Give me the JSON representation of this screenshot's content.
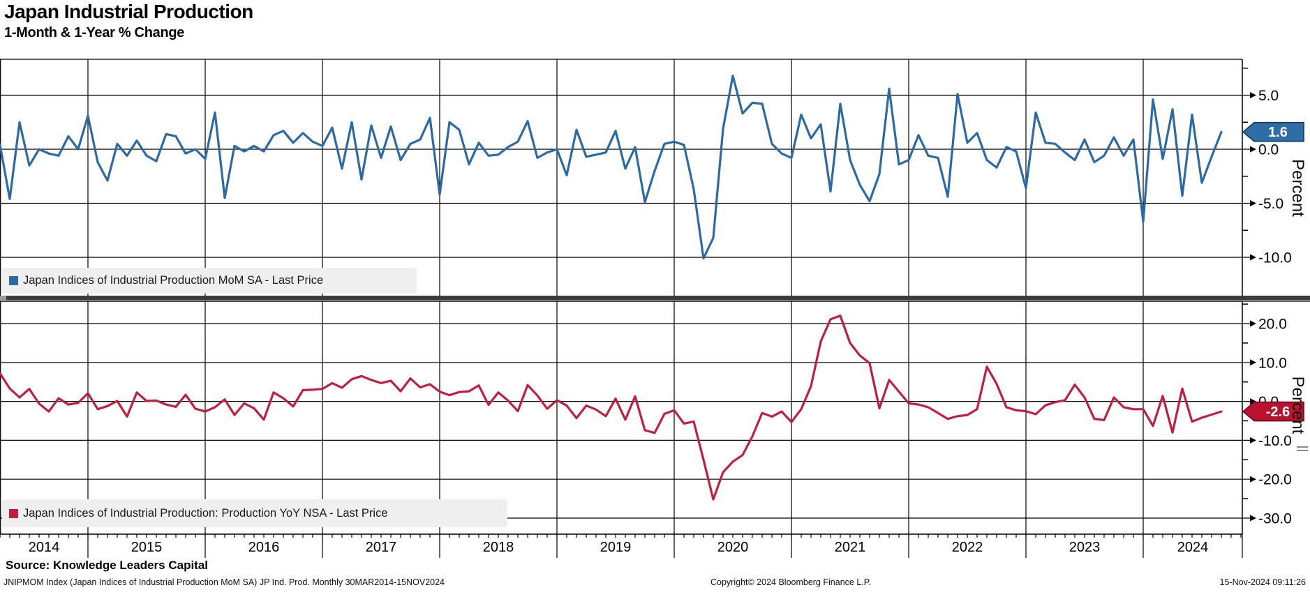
{
  "header": {
    "title": "Japan Industrial Production",
    "subtitle": "1-Month & 1-Year % Change"
  },
  "colors": {
    "mom_line": "#2b6aa5",
    "mom_badge_fill": "#2e6da6",
    "mom_badge_border": "#173a5e",
    "yoy_line": "#c01f3e",
    "yoy_badge_fill": "#b8122f",
    "yoy_badge_border": "#6e0a1d",
    "grid": "#000000",
    "legend_bg": "#efefef",
    "separator": "#3c3c3c"
  },
  "x_axis": {
    "year_labels": [
      "2014",
      "2015",
      "2016",
      "2017",
      "2018",
      "2019",
      "2020",
      "2021",
      "2022",
      "2023",
      "2024"
    ]
  },
  "chart_data": [
    {
      "type": "line",
      "panel": "top",
      "name": "Japan Indices of Industrial Production MoM SA",
      "legend": "Japan Indices of Industrial Production MoM SA - Last Price",
      "frequency": "monthly",
      "start": "2014-03",
      "end": "2024-09",
      "ylabel": "Percent",
      "last_price_label": "1.6",
      "y_axis": {
        "tick_values": [
          5,
          0,
          -5,
          -10
        ],
        "tick_labels": [
          "5.0",
          "0.0",
          "-5.0",
          "-10.0"
        ],
        "minor_tick_values": [
          7.5,
          2.5,
          -2.5,
          -7.5
        ],
        "range_approx": [
          -11.5,
          8.3
        ],
        "grid": true,
        "side": "right"
      },
      "values": [
        1.5,
        0.4,
        -4.6,
        2.5,
        -1.5,
        0.0,
        -0.4,
        -0.6,
        1.2,
        0.0,
        3.1,
        -1.2,
        -2.9,
        0.5,
        -0.6,
        0.8,
        -0.6,
        -1.1,
        1.4,
        1.2,
        -0.4,
        0.0,
        -0.9,
        3.4,
        -4.5,
        0.3,
        -0.2,
        0.3,
        -0.2,
        1.3,
        1.7,
        0.6,
        1.5,
        0.7,
        0.3,
        2.0,
        -1.8,
        2.5,
        -2.8,
        2.2,
        -0.8,
        2.1,
        -1.0,
        0.5,
        0.9,
        2.9,
        -4.2,
        2.5,
        1.8,
        -1.4,
        0.6,
        -0.6,
        -0.5,
        0.2,
        0.7,
        2.6,
        -0.8,
        -0.3,
        0.0,
        -2.4,
        1.8,
        -0.7,
        -0.5,
        -0.3,
        1.7,
        -1.8,
        0.2,
        -4.9,
        -2.0,
        0.5,
        0.7,
        0.4,
        -3.7,
        -10.1,
        -8.2,
        1.9,
        6.8,
        3.3,
        4.3,
        4.2,
        0.5,
        -0.4,
        -0.8,
        3.2,
        1.0,
        2.3,
        -3.9,
        4.2,
        -1.0,
        -3.3,
        -4.8,
        -2.3,
        5.6,
        -1.4,
        -1.0,
        1.3,
        -0.6,
        -0.8,
        -4.4,
        5.1,
        0.6,
        1.5,
        -1.0,
        -1.7,
        0.2,
        -0.2,
        -3.6,
        3.4,
        0.6,
        0.5,
        -0.3,
        -1.0,
        0.9,
        -1.2,
        -0.6,
        1.1,
        -0.6,
        0.9,
        -6.7,
        4.6,
        -0.9,
        3.7,
        -4.3,
        3.2,
        -3.1,
        -0.7,
        1.6
      ]
    },
    {
      "type": "line",
      "panel": "bottom",
      "name": "Japan Indices of Industrial Production: Production YoY NSA",
      "legend": "Japan Indices of Industrial Production: Production YoY NSA - Last Price",
      "frequency": "monthly",
      "start": "2014-03",
      "end": "2024-09",
      "ylabel": "Percent",
      "last_price_label": "-2.6",
      "y_axis": {
        "tick_values": [
          20,
          10,
          0,
          -10,
          -20,
          -30
        ],
        "tick_labels": [
          "20.0",
          "10.0",
          "0.0",
          "-10.0",
          "-20.0",
          "-30.0"
        ],
        "minor_tick_values": [
          25,
          15,
          5,
          -5,
          -15,
          -25
        ],
        "range_approx": [
          -34,
          26
        ],
        "grid": true,
        "side": "right"
      },
      "values": [
        8.0,
        7.2,
        3.3,
        1.0,
        3.2,
        -0.6,
        -2.6,
        0.8,
        -0.8,
        -0.4,
        2.1,
        -2.0,
        -1.2,
        0.1,
        -3.9,
        2.3,
        0.1,
        0.2,
        -0.8,
        -1.4,
        1.7,
        -1.9,
        -2.6,
        -1.5,
        0.5,
        -3.5,
        -0.5,
        -1.8,
        -4.7,
        2.3,
        0.8,
        -1.3,
        2.9,
        3.0,
        3.2,
        4.7,
        3.5,
        5.7,
        6.5,
        5.5,
        4.7,
        5.3,
        2.6,
        5.9,
        3.6,
        4.4,
        2.5,
        1.6,
        2.4,
        2.6,
        4.1,
        -0.9,
        2.3,
        0.2,
        -2.5,
        4.2,
        1.5,
        -1.9,
        0.3,
        -1.1,
        -4.3,
        -1.1,
        -2.1,
        -3.8,
        0.7,
        -4.7,
        1.3,
        -7.4,
        -8.1,
        -3.2,
        -2.3,
        -5.7,
        -5.2,
        -15.0,
        -25.2,
        -18.2,
        -15.5,
        -13.8,
        -9.0,
        -3.0,
        -3.9,
        -2.6,
        -5.3,
        -2.0,
        3.9,
        15.4,
        21.1,
        22.0,
        15.0,
        11.8,
        9.8,
        -1.8,
        5.5,
        2.5,
        -0.5,
        -0.8,
        -1.5,
        -3.0,
        -4.5,
        -3.8,
        -3.5,
        -2.0,
        8.9,
        4.5,
        -1.5,
        -2.3,
        -2.5,
        -3.3,
        -1.0,
        -0.2,
        0.3,
        4.3,
        1.0,
        -4.5,
        -4.8,
        1.0,
        -1.5,
        -2.0,
        -2.0,
        -6.3,
        1.4,
        -8.0,
        3.3,
        -5.2,
        -4.2,
        -3.4,
        -2.6
      ]
    }
  ],
  "footer": {
    "source": "Source: Knowledge Leaders Capital",
    "info": "JNIPMOM Index (Japan Indices of Industrial Production MoM SA) JP Ind. Prod.  Monthly 30MAR2014-15NOV2024",
    "copyright": "Copyright© 2024 Bloomberg Finance L.P.",
    "timestamp": "15-Nov-2024 09:11:26"
  }
}
